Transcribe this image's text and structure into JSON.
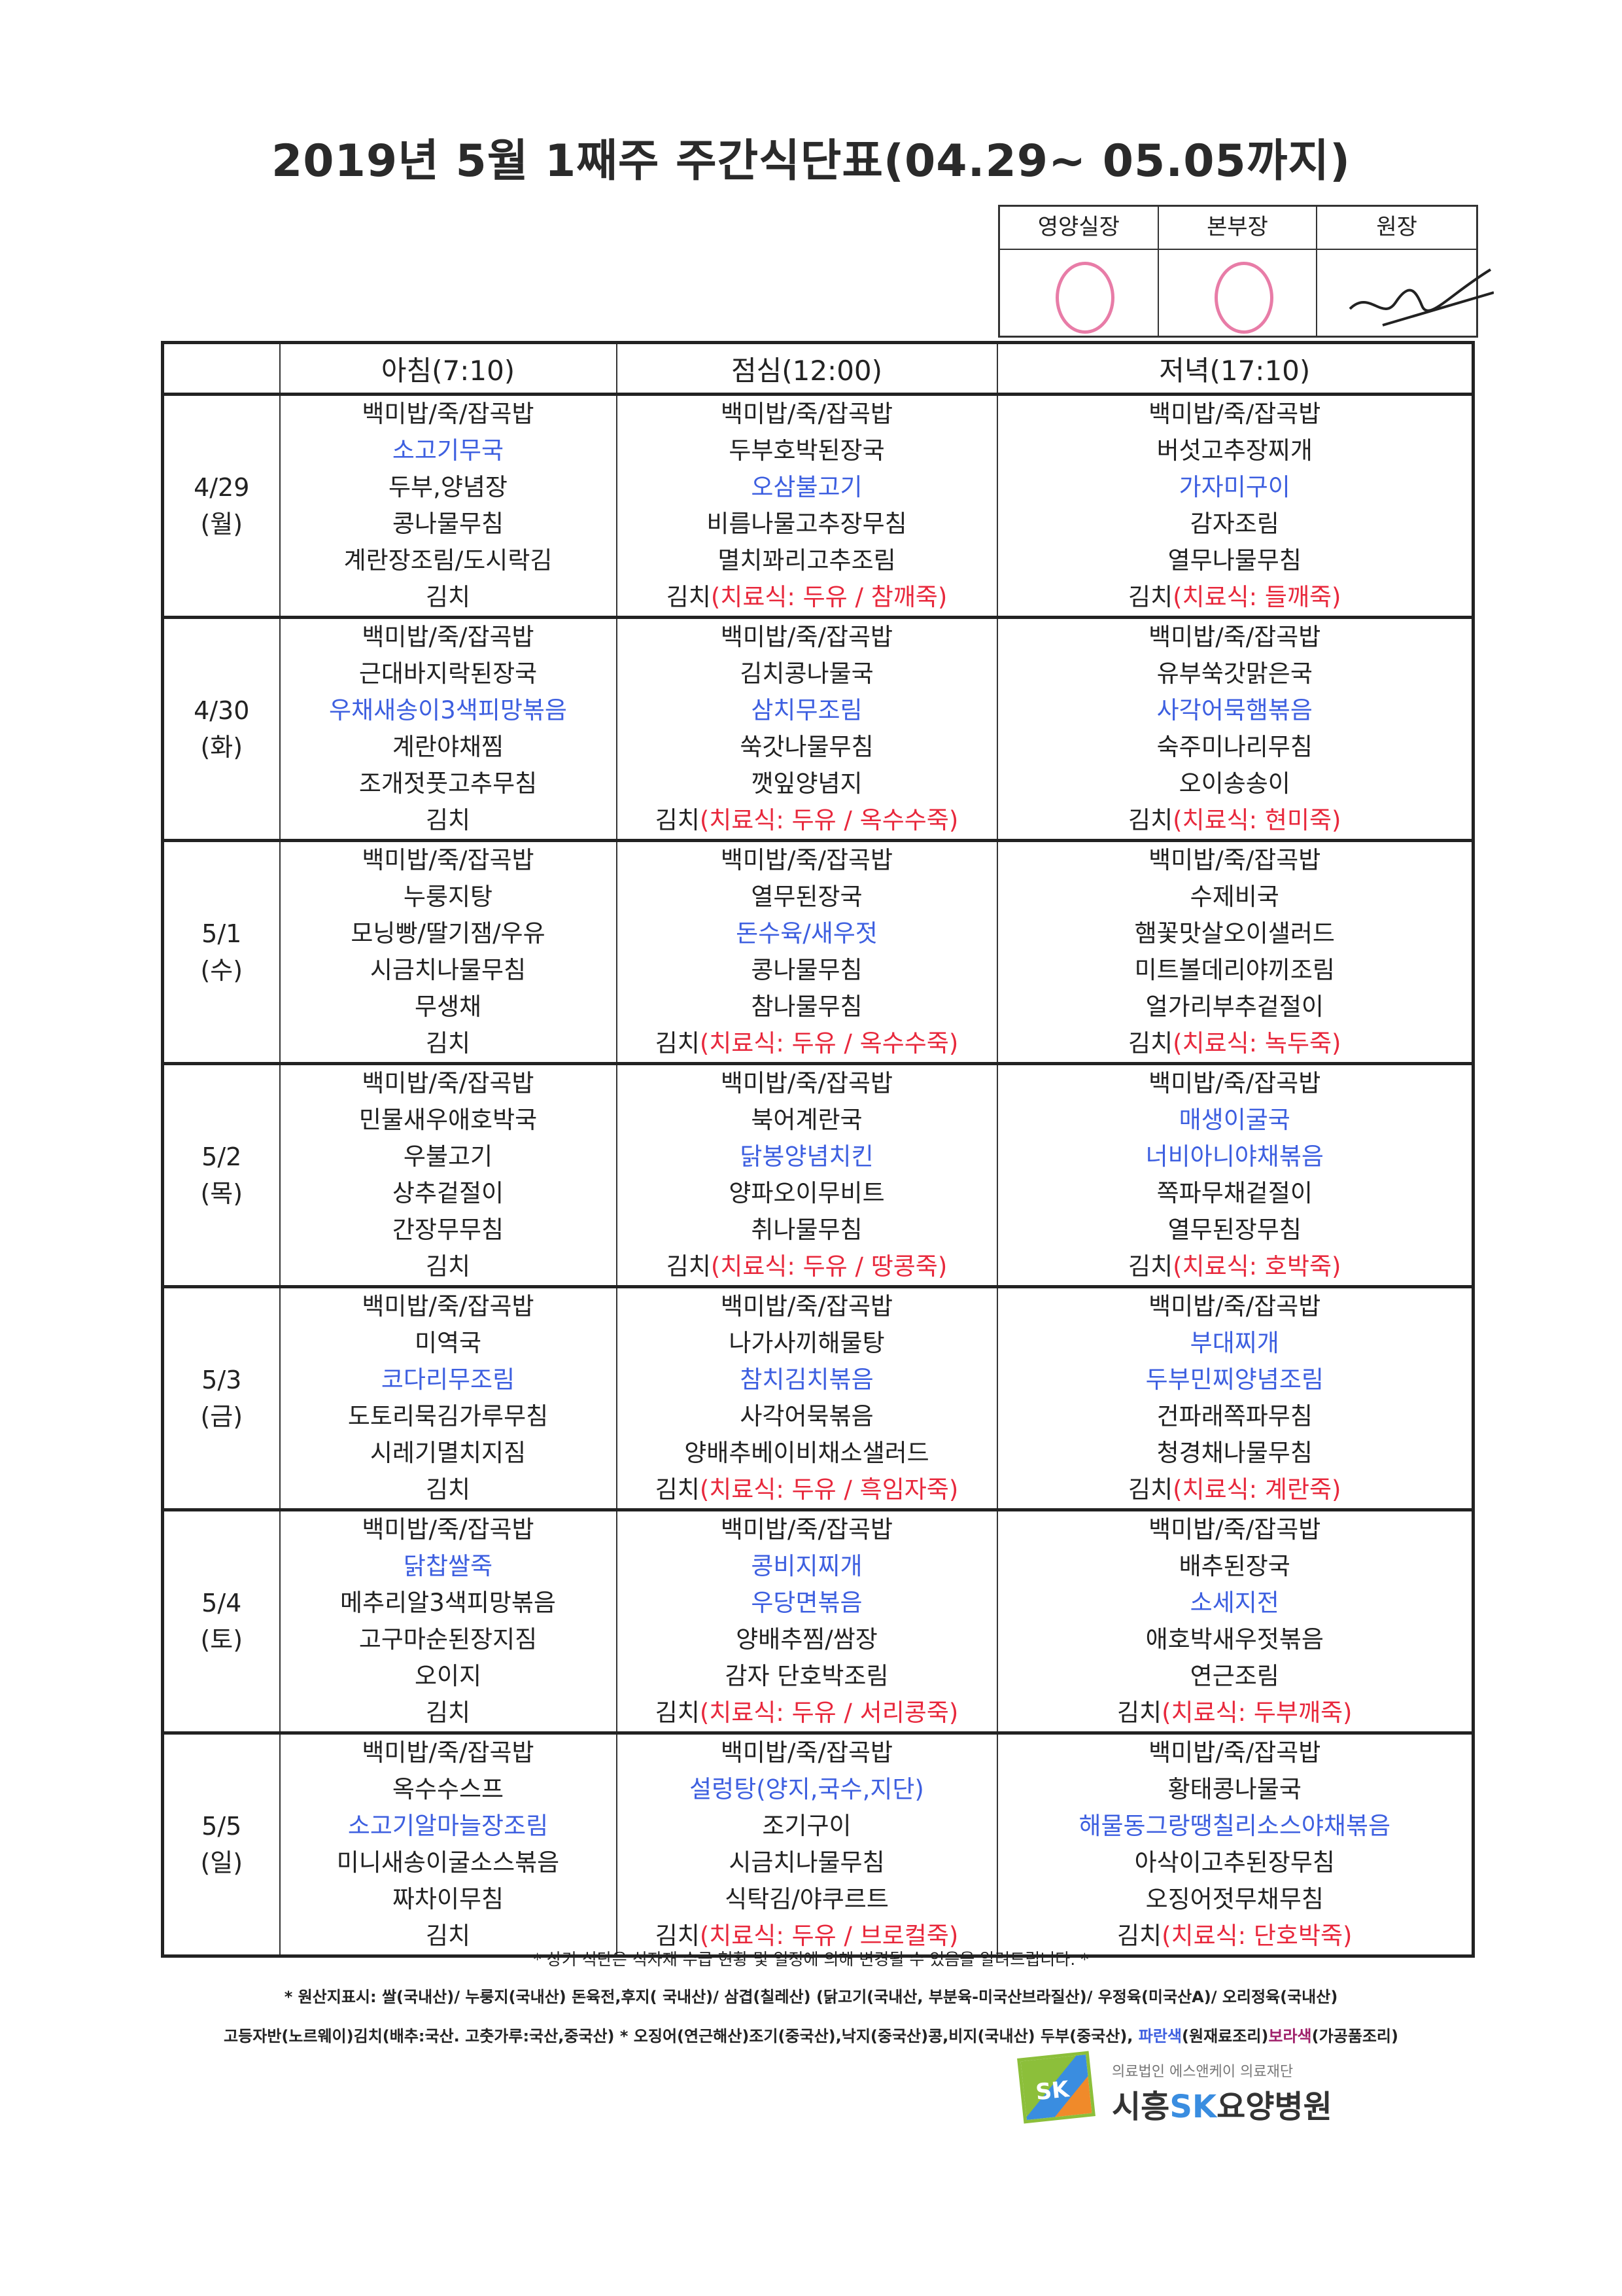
{
  "title": "2019년 5월 1째주 주간식단표(04.29~ 05.05까지)",
  "approval": {
    "headers": [
      "영양실장",
      "본부장",
      "원장"
    ]
  },
  "columns": [
    "",
    "아침(7:10)",
    "점심(12:00)",
    "저녁(17:10)"
  ],
  "colors": {
    "blue": "#3d5fe0",
    "red": "#e8283c",
    "purple": "#a0206a"
  },
  "days": [
    {
      "date": "4/29",
      "weekday": "(월)",
      "breakfast": [
        {
          "t": "백미밥/죽/잡곡밥"
        },
        {
          "t": "소고기무국",
          "c": "blue"
        },
        {
          "t": "두부,양념장"
        },
        {
          "t": "콩나물무침"
        },
        {
          "t": "계란장조림/도시락김"
        },
        {
          "t": "김치"
        }
      ],
      "lunch": [
        {
          "t": "백미밥/죽/잡곡밥"
        },
        {
          "t": "두부호박된장국"
        },
        {
          "t": "오삼불고기",
          "c": "blue"
        },
        {
          "t": "비름나물고추장무침"
        },
        {
          "t": "멸치꽈리고추조림"
        },
        {
          "t": "김치",
          "diet": "(치료식: 두유 / 참깨죽)"
        }
      ],
      "dinner": [
        {
          "t": "백미밥/죽/잡곡밥"
        },
        {
          "t": "버섯고추장찌개"
        },
        {
          "t": "가자미구이",
          "c": "blue"
        },
        {
          "t": "감자조림"
        },
        {
          "t": "열무나물무침"
        },
        {
          "t": "김치",
          "diet": "(치료식: 들깨죽)"
        }
      ]
    },
    {
      "date": "4/30",
      "weekday": "(화)",
      "breakfast": [
        {
          "t": "백미밥/죽/잡곡밥"
        },
        {
          "t": "근대바지락된장국"
        },
        {
          "t": "우채새송이3색피망볶음",
          "c": "blue"
        },
        {
          "t": "계란야채찜"
        },
        {
          "t": "조개젓풋고추무침"
        },
        {
          "t": "김치"
        }
      ],
      "lunch": [
        {
          "t": "백미밥/죽/잡곡밥"
        },
        {
          "t": "김치콩나물국"
        },
        {
          "t": "삼치무조림",
          "c": "blue"
        },
        {
          "t": "쑥갓나물무침"
        },
        {
          "t": "깻잎양념지"
        },
        {
          "t": "김치",
          "diet": "(치료식: 두유 / 옥수수죽)"
        }
      ],
      "dinner": [
        {
          "t": "백미밥/죽/잡곡밥"
        },
        {
          "t": "유부쑥갓맑은국"
        },
        {
          "t": "사각어묵햄볶음",
          "c": "blue"
        },
        {
          "t": "숙주미나리무침"
        },
        {
          "t": "오이송송이"
        },
        {
          "t": "김치",
          "diet": "(치료식: 현미죽)"
        }
      ]
    },
    {
      "date": "5/1",
      "weekday": "(수)",
      "breakfast": [
        {
          "t": "백미밥/죽/잡곡밥"
        },
        {
          "t": "누룽지탕"
        },
        {
          "t": "모닝빵/딸기잼/우유"
        },
        {
          "t": "시금치나물무침"
        },
        {
          "t": "무생채"
        },
        {
          "t": "김치"
        }
      ],
      "lunch": [
        {
          "t": "백미밥/죽/잡곡밥"
        },
        {
          "t": "열무된장국"
        },
        {
          "t": "돈수육/새우젓",
          "c": "blue"
        },
        {
          "t": "콩나물무침"
        },
        {
          "t": "참나물무침"
        },
        {
          "t": "김치",
          "diet": "(치료식: 두유 / 옥수수죽)"
        }
      ],
      "dinner": [
        {
          "t": "백미밥/죽/잡곡밥"
        },
        {
          "t": "수제비국"
        },
        {
          "t": "햄꽃맛살오이샐러드"
        },
        {
          "t": "미트볼데리야끼조림"
        },
        {
          "t": "얼가리부추겉절이"
        },
        {
          "t": "김치",
          "diet": "(치료식: 녹두죽)"
        }
      ]
    },
    {
      "date": "5/2",
      "weekday": "(목)",
      "breakfast": [
        {
          "t": "백미밥/죽/잡곡밥"
        },
        {
          "t": "민물새우애호박국"
        },
        {
          "t": "우불고기"
        },
        {
          "t": "상추겉절이"
        },
        {
          "t": "간장무무침"
        },
        {
          "t": "김치"
        }
      ],
      "lunch": [
        {
          "t": "백미밥/죽/잡곡밥"
        },
        {
          "t": "북어계란국"
        },
        {
          "t": "닭봉양념치킨",
          "c": "blue"
        },
        {
          "t": "양파오이무비트"
        },
        {
          "t": "취나물무침"
        },
        {
          "t": "김치",
          "diet": "(치료식: 두유 / 땅콩죽)"
        }
      ],
      "dinner": [
        {
          "t": "백미밥/죽/잡곡밥"
        },
        {
          "t": "매생이굴국",
          "c": "blue"
        },
        {
          "t": "너비아니야채볶음",
          "c": "blue"
        },
        {
          "t": "쪽파무채겉절이"
        },
        {
          "t": "열무된장무침"
        },
        {
          "t": "김치",
          "diet": "(치료식: 호박죽)"
        }
      ]
    },
    {
      "date": "5/3",
      "weekday": "(금)",
      "breakfast": [
        {
          "t": "백미밥/죽/잡곡밥"
        },
        {
          "t": "미역국"
        },
        {
          "t": "코다리무조림",
          "c": "blue"
        },
        {
          "t": "도토리묵김가루무침"
        },
        {
          "t": "시레기멸치지짐"
        },
        {
          "t": "김치"
        }
      ],
      "lunch": [
        {
          "t": "백미밥/죽/잡곡밥"
        },
        {
          "t": "나가사끼해물탕"
        },
        {
          "t": "참치김치볶음",
          "c": "blue"
        },
        {
          "t": "사각어묵볶음"
        },
        {
          "t": "양배추베이비채소샐러드"
        },
        {
          "t": "김치",
          "diet": "(치료식: 두유 / 흑임자죽)"
        }
      ],
      "dinner": [
        {
          "t": "백미밥/죽/잡곡밥"
        },
        {
          "t": "부대찌개",
          "c": "blue"
        },
        {
          "t": "두부민찌양념조림",
          "c": "blue"
        },
        {
          "t": "건파래쪽파무침"
        },
        {
          "t": "청경채나물무침"
        },
        {
          "t": "김치",
          "diet": "(치료식: 계란죽)"
        }
      ]
    },
    {
      "date": "5/4",
      "weekday": "(토)",
      "breakfast": [
        {
          "t": "백미밥/죽/잡곡밥"
        },
        {
          "t": "닭찹쌀죽",
          "c": "blue"
        },
        {
          "t": "메추리알3색피망볶음"
        },
        {
          "t": "고구마순된장지짐"
        },
        {
          "t": "오이지"
        },
        {
          "t": "김치"
        }
      ],
      "lunch": [
        {
          "t": "백미밥/죽/잡곡밥"
        },
        {
          "t": "콩비지찌개",
          "c": "blue"
        },
        {
          "t": "우당면볶음",
          "c": "blue"
        },
        {
          "t": "양배추찜/쌈장"
        },
        {
          "t": "감자 단호박조림"
        },
        {
          "t": "김치",
          "diet": "(치료식: 두유 / 서리콩죽)"
        }
      ],
      "dinner": [
        {
          "t": "백미밥/죽/잡곡밥"
        },
        {
          "t": "배추된장국"
        },
        {
          "t": "소세지전",
          "c": "blue"
        },
        {
          "t": "애호박새우젓볶음"
        },
        {
          "t": "연근조림"
        },
        {
          "t": "김치",
          "diet": "(치료식: 두부깨죽)"
        }
      ]
    },
    {
      "date": "5/5",
      "weekday": "(일)",
      "breakfast": [
        {
          "t": "백미밥/죽/잡곡밥"
        },
        {
          "t": "옥수수스프"
        },
        {
          "t": "소고기알마늘장조림",
          "c": "blue"
        },
        {
          "t": "미니새송이굴소스볶음"
        },
        {
          "t": "짜차이무침"
        },
        {
          "t": "김치"
        }
      ],
      "lunch": [
        {
          "t": "백미밥/죽/잡곡밥"
        },
        {
          "t": "설렁탕(양지,국수,지단)",
          "c": "blue"
        },
        {
          "t": "조기구이"
        },
        {
          "t": "시금치나물무침"
        },
        {
          "t": "식탁김/야쿠르트"
        },
        {
          "t": "김치",
          "diet": "(치료식: 두유 / 브로컬죽)"
        }
      ],
      "dinner": [
        {
          "t": "백미밥/죽/잡곡밥"
        },
        {
          "t": "황태콩나물국"
        },
        {
          "t": "해물동그랑땡칠리소스야채볶음",
          "c": "blue"
        },
        {
          "t": "아삭이고추된장무침"
        },
        {
          "t": "오징어젓무채무침"
        },
        {
          "t": "김치",
          "diet": "(치료식: 단호박죽)"
        }
      ]
    }
  ],
  "notes": {
    "notice": "* 상기 식단은 식자재 수급 현황 및 일정에 의해 변경될 수 있음을 알려드립니다. *",
    "origin1": "* 원산지표시: 쌀(국내산)/ 누룽지(국내산) 돈육전,후지( 국내산)/ 삼겹(칠레산) (닭고기(국내산, 부분육-미국산브라질산)/ 우정육(미국산A)/ 오리정육(국내산)",
    "origin2": "고등자반(노르웨이)김치(배추:국산. 고춧가루:국산,중국산) * 오징어(연근해산)조기(중국산),낙지(중국산)콩,비지(국내산) 두부(중국산), ",
    "legend_blue": "파란색",
    "legend_blue_desc": "(원재료조리)",
    "legend_purple": "보라색",
    "legend_purple_desc": "(가공품조리)"
  },
  "logo": {
    "sub": "의료법인 에스앤케이 의료재단",
    "name_pre": "시흥",
    "name_sk": "SK",
    "name_post": "요양병원",
    "mark": "SK"
  }
}
